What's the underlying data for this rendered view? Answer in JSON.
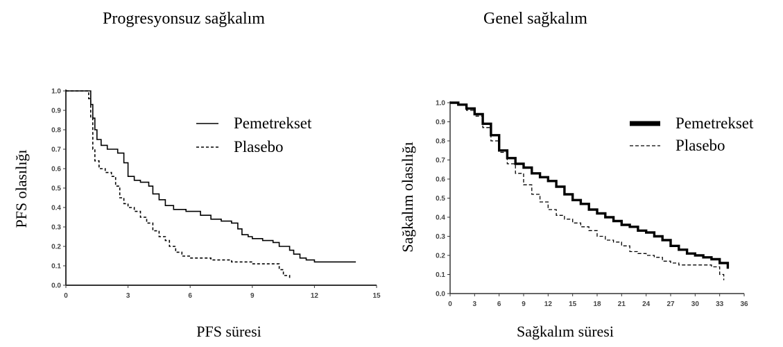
{
  "chart_data": [
    {
      "type": "line",
      "title": "Progresyonsuz sağkalım",
      "xlabel": "PFS süresi",
      "ylabel": "PFS olasılığı",
      "xlim": [
        0,
        15
      ],
      "ylim": [
        0.0,
        1.0
      ],
      "xticks": [
        "0",
        "3",
        "6",
        "9",
        "12",
        "15"
      ],
      "yticks": [
        "0.0",
        "0.1",
        "0.2",
        "0.3",
        "0.4",
        "0.5",
        "0.6",
        "0.7",
        "0.8",
        "0.9",
        "1.0"
      ],
      "legend_position": "top-right",
      "series": [
        {
          "name": "Pemetrekset",
          "style": "solid",
          "points": [
            [
              0,
              1.0
            ],
            [
              1.0,
              1.0
            ],
            [
              1.2,
              0.93
            ],
            [
              1.3,
              0.86
            ],
            [
              1.4,
              0.8
            ],
            [
              1.5,
              0.75
            ],
            [
              1.7,
              0.72
            ],
            [
              2.0,
              0.7
            ],
            [
              2.5,
              0.68
            ],
            [
              2.8,
              0.63
            ],
            [
              3.0,
              0.56
            ],
            [
              3.3,
              0.54
            ],
            [
              3.6,
              0.53
            ],
            [
              4.0,
              0.51
            ],
            [
              4.2,
              0.47
            ],
            [
              4.5,
              0.44
            ],
            [
              4.8,
              0.41
            ],
            [
              5.2,
              0.39
            ],
            [
              5.8,
              0.38
            ],
            [
              6.5,
              0.36
            ],
            [
              7.0,
              0.34
            ],
            [
              7.5,
              0.33
            ],
            [
              8.0,
              0.32
            ],
            [
              8.3,
              0.29
            ],
            [
              8.5,
              0.26
            ],
            [
              8.8,
              0.25
            ],
            [
              9.0,
              0.24
            ],
            [
              9.5,
              0.23
            ],
            [
              10.0,
              0.22
            ],
            [
              10.3,
              0.2
            ],
            [
              10.8,
              0.18
            ],
            [
              11.0,
              0.16
            ],
            [
              11.3,
              0.14
            ],
            [
              11.6,
              0.13
            ],
            [
              12.0,
              0.12
            ],
            [
              14.0,
              0.12
            ]
          ]
        },
        {
          "name": "Plasebo",
          "style": "dashed",
          "points": [
            [
              0,
              1.0
            ],
            [
              0.9,
              1.0
            ],
            [
              1.1,
              0.96
            ],
            [
              1.2,
              0.86
            ],
            [
              1.3,
              0.7
            ],
            [
              1.4,
              0.64
            ],
            [
              1.6,
              0.6
            ],
            [
              1.9,
              0.58
            ],
            [
              2.2,
              0.56
            ],
            [
              2.4,
              0.51
            ],
            [
              2.6,
              0.45
            ],
            [
              2.8,
              0.42
            ],
            [
              3.0,
              0.4
            ],
            [
              3.3,
              0.38
            ],
            [
              3.6,
              0.35
            ],
            [
              3.9,
              0.32
            ],
            [
              4.2,
              0.28
            ],
            [
              4.5,
              0.25
            ],
            [
              4.8,
              0.23
            ],
            [
              5.0,
              0.2
            ],
            [
              5.3,
              0.17
            ],
            [
              5.6,
              0.15
            ],
            [
              6.0,
              0.14
            ],
            [
              7.0,
              0.13
            ],
            [
              8.0,
              0.12
            ],
            [
              8.5,
              0.12
            ],
            [
              9.0,
              0.11
            ],
            [
              10.0,
              0.11
            ],
            [
              10.3,
              0.08
            ],
            [
              10.5,
              0.05
            ],
            [
              10.8,
              0.03
            ]
          ]
        }
      ]
    },
    {
      "type": "line",
      "title": "Genel sağkalım",
      "xlabel": "Sağkalım süresi",
      "ylabel": "Sağkalım olasılığı",
      "xlim": [
        0,
        36
      ],
      "ylim": [
        0.0,
        1.0
      ],
      "xticks": [
        "0",
        "3",
        "6",
        "9",
        "12",
        "15",
        "18",
        "21",
        "24",
        "27",
        "30",
        "33",
        "36"
      ],
      "yticks": [
        "0.0",
        "0.1",
        "0.2",
        "0.3",
        "0.4",
        "0.5",
        "0.6",
        "0.7",
        "0.8",
        "0.9",
        "1.0"
      ],
      "legend_position": "top-right",
      "series": [
        {
          "name": "Pemetrekset",
          "style": "thick",
          "points": [
            [
              0,
              1.0
            ],
            [
              1,
              0.99
            ],
            [
              2,
              0.97
            ],
            [
              3,
              0.94
            ],
            [
              4,
              0.89
            ],
            [
              5,
              0.83
            ],
            [
              6,
              0.75
            ],
            [
              7,
              0.71
            ],
            [
              8,
              0.68
            ],
            [
              9,
              0.66
            ],
            [
              10,
              0.63
            ],
            [
              11,
              0.61
            ],
            [
              12,
              0.59
            ],
            [
              13,
              0.56
            ],
            [
              14,
              0.52
            ],
            [
              15,
              0.49
            ],
            [
              16,
              0.47
            ],
            [
              17,
              0.44
            ],
            [
              18,
              0.42
            ],
            [
              19,
              0.4
            ],
            [
              20,
              0.38
            ],
            [
              21,
              0.36
            ],
            [
              22,
              0.35
            ],
            [
              23,
              0.33
            ],
            [
              24,
              0.32
            ],
            [
              25,
              0.3
            ],
            [
              26,
              0.28
            ],
            [
              27,
              0.25
            ],
            [
              28,
              0.23
            ],
            [
              29,
              0.21
            ],
            [
              30,
              0.2
            ],
            [
              31,
              0.19
            ],
            [
              32,
              0.18
            ],
            [
              33,
              0.16
            ],
            [
              34,
              0.13
            ]
          ]
        },
        {
          "name": "Plasebo",
          "style": "dashed",
          "points": [
            [
              0,
              1.0
            ],
            [
              1,
              0.99
            ],
            [
              2,
              0.96
            ],
            [
              3,
              0.93
            ],
            [
              4,
              0.87
            ],
            [
              5,
              0.8
            ],
            [
              6,
              0.74
            ],
            [
              7,
              0.68
            ],
            [
              8,
              0.63
            ],
            [
              9,
              0.57
            ],
            [
              10,
              0.52
            ],
            [
              11,
              0.48
            ],
            [
              12,
              0.44
            ],
            [
              13,
              0.41
            ],
            [
              14,
              0.39
            ],
            [
              15,
              0.37
            ],
            [
              16,
              0.35
            ],
            [
              17,
              0.33
            ],
            [
              18,
              0.3
            ],
            [
              19,
              0.28
            ],
            [
              20,
              0.27
            ],
            [
              21,
              0.25
            ],
            [
              22,
              0.22
            ],
            [
              23,
              0.21
            ],
            [
              24,
              0.2
            ],
            [
              25,
              0.19
            ],
            [
              26,
              0.17
            ],
            [
              27,
              0.16
            ],
            [
              28,
              0.15
            ],
            [
              30,
              0.15
            ],
            [
              31,
              0.15
            ],
            [
              32,
              0.14
            ],
            [
              33,
              0.1
            ],
            [
              33.5,
              0.07
            ]
          ]
        }
      ]
    }
  ]
}
